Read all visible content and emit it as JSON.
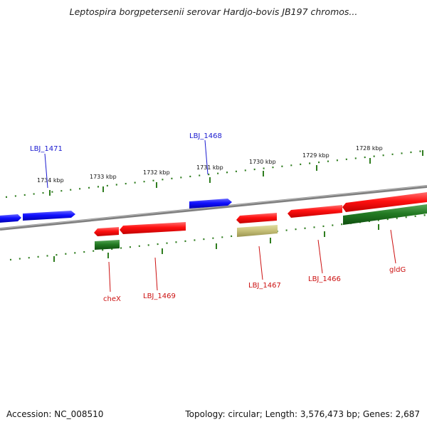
{
  "title": "Leptospira borgpetersenii serovar Hardjo-bovis JB197 chromos...",
  "footer": {
    "accession": "Accession: NC_008510",
    "summary": "Topology: circular; Length: 3,576,473 bp; Genes: 2,687"
  },
  "colors": {
    "backbone": "#8a8a8a",
    "tick": "#2f7d1f",
    "gene_blue": "#1010ff",
    "gene_red": "#ff1010",
    "gene_green": "#237a23",
    "gene_khaki": "#c8c27a",
    "label_blue": "#1a1ad0",
    "label_red": "#cc1010"
  },
  "ticks": [
    {
      "label": "1734 kbp"
    },
    {
      "label": "1733 kbp"
    },
    {
      "label": "1732 kbp"
    },
    {
      "label": "1731 kbp"
    },
    {
      "label": "1730 kbp"
    },
    {
      "label": "1729 kbp"
    },
    {
      "label": "1728 kbp"
    }
  ],
  "gene_labels": [
    {
      "text": "LBJ_1471",
      "color": "blue"
    },
    {
      "text": "LBJ_1468",
      "color": "blue"
    },
    {
      "text": "cheX",
      "color": "red"
    },
    {
      "text": "LBJ_1469",
      "color": "red"
    },
    {
      "text": "LBJ_1467",
      "color": "red"
    },
    {
      "text": "LBJ_1466",
      "color": "red"
    },
    {
      "text": "gldG",
      "color": "red"
    }
  ]
}
